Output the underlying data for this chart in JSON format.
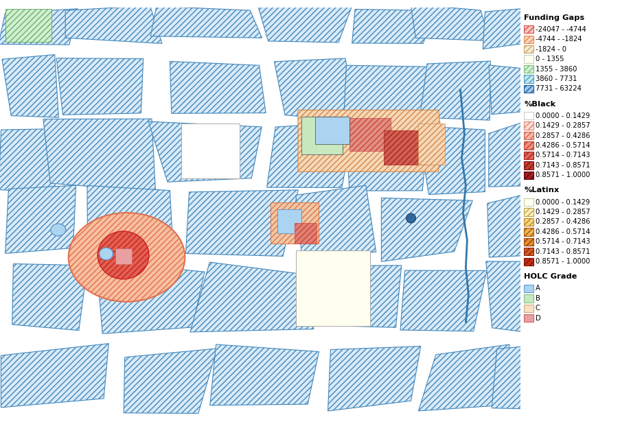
{
  "figsize": [
    9.19,
    6.5
  ],
  "dpi": 100,
  "funding_gaps": {
    "title": "Funding Gaps",
    "items": [
      {
        "label": "-24047 - -4744",
        "facecolor": "#f5c6c0",
        "edgecolor": "#d9534f",
        "hatch": "////"
      },
      {
        "label": "-4744 - -1824",
        "facecolor": "#f5d5c0",
        "edgecolor": "#e8874a",
        "hatch": "////"
      },
      {
        "label": "-1824 - 0",
        "facecolor": "#f5ecd0",
        "edgecolor": "#c8a870",
        "hatch": "////"
      },
      {
        "label": "0 - 1355",
        "facecolor": "#fffff0",
        "edgecolor": "#cccccc",
        "hatch": ""
      },
      {
        "label": "1355 - 3860",
        "facecolor": "#d0f0d0",
        "edgecolor": "#80c080",
        "hatch": "////"
      },
      {
        "label": "3860 - 7731",
        "facecolor": "#c0e8f0",
        "edgecolor": "#50a0c0",
        "hatch": "////"
      },
      {
        "label": "7731 - 63224",
        "facecolor": "#a0c8e8",
        "edgecolor": "#2060a0",
        "hatch": "////"
      }
    ]
  },
  "pct_black": {
    "title": "%Black",
    "items": [
      {
        "label": "0.0000 - 0.1429",
        "facecolor": "#ffffff",
        "edgecolor": "#cccccc",
        "hatch": ""
      },
      {
        "label": "0.1429 - 0.2857",
        "facecolor": "#fce0d8",
        "edgecolor": "#e08070",
        "hatch": "////"
      },
      {
        "label": "0.2857 - 0.4286",
        "facecolor": "#f8b8a8",
        "edgecolor": "#d06050",
        "hatch": "////"
      },
      {
        "label": "0.4286 - 0.5714",
        "facecolor": "#f09080",
        "edgecolor": "#c04030",
        "hatch": "////"
      },
      {
        "label": "0.5714 - 0.7143",
        "facecolor": "#e06858",
        "edgecolor": "#a02020",
        "hatch": "////"
      },
      {
        "label": "0.7143 - 0.8571",
        "facecolor": "#c04030",
        "edgecolor": "#801010",
        "hatch": "////"
      },
      {
        "label": "0.8571 - 1.0000",
        "facecolor": "#a02020",
        "edgecolor": "#600010",
        "hatch": "////"
      }
    ]
  },
  "pct_latinx": {
    "title": "%Latinx",
    "items": [
      {
        "label": "0.0000 - 0.1429",
        "facecolor": "#fffff0",
        "edgecolor": "#ccccaa",
        "hatch": ""
      },
      {
        "label": "0.1429 - 0.2857",
        "facecolor": "#f8f0c0",
        "edgecolor": "#c0a040",
        "hatch": "////"
      },
      {
        "label": "0.2857 - 0.4286",
        "facecolor": "#f0d880",
        "edgecolor": "#c08020",
        "hatch": "////"
      },
      {
        "label": "0.4286 - 0.5714",
        "facecolor": "#e8b850",
        "edgecolor": "#b05010",
        "hatch": "////"
      },
      {
        "label": "0.5714 - 0.7143",
        "facecolor": "#e09030",
        "edgecolor": "#a04010",
        "hatch": "////"
      },
      {
        "label": "0.7143 - 0.8571",
        "facecolor": "#d06020",
        "edgecolor": "#902010",
        "hatch": "////"
      },
      {
        "label": "0.8571 - 1.0000",
        "facecolor": "#c03010",
        "edgecolor": "#801010",
        "hatch": "////"
      }
    ]
  },
  "holc_grade": {
    "title": "HOLC Grade",
    "items": [
      {
        "label": "A",
        "facecolor": "#aad4f0",
        "edgecolor": "#6699cc"
      },
      {
        "label": "B",
        "facecolor": "#c8e8c0",
        "edgecolor": "#88bb88"
      },
      {
        "label": "C",
        "facecolor": "#f5e0c0",
        "edgecolor": "#ccaa88"
      },
      {
        "label": "D",
        "facecolor": "#e8a0a0",
        "edgecolor": "#cc6666"
      }
    ]
  }
}
